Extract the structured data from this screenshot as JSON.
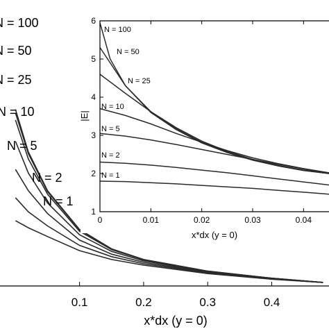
{
  "chart_data": [
    {
      "type": "line",
      "title": "",
      "xlabel": "x*dx (y = 0)",
      "ylabel": "",
      "xlim": [
        -0.035,
        0.485
      ],
      "ylim": [
        0.9,
        9.0
      ],
      "xticks": [
        0.1,
        0.2,
        0.3,
        0.4
      ],
      "x_tick_labels": [
        "0.1",
        "0.2",
        "0.3",
        "0.4"
      ],
      "grid": false,
      "legend": "none",
      "series": [
        {
          "name": "N = 100",
          "label": "N = 100",
          "x": [
            0,
            0.02,
            0.05,
            0.1,
            0.15,
            0.2,
            0.3,
            0.4,
            0.48
          ],
          "y": [
            5.9,
            4.7,
            3.6,
            2.5,
            1.95,
            1.65,
            1.32,
            1.12,
            1.0
          ]
        },
        {
          "name": "N = 50",
          "label": "N = 50",
          "x": [
            0,
            0.02,
            0.05,
            0.1,
            0.15,
            0.2,
            0.3,
            0.4,
            0.48
          ],
          "y": [
            5.8,
            4.65,
            3.57,
            2.49,
            1.95,
            1.65,
            1.32,
            1.12,
            1.0
          ]
        },
        {
          "name": "N = 25",
          "label": "N = 25",
          "x": [
            0,
            0.02,
            0.05,
            0.1,
            0.15,
            0.2,
            0.3,
            0.4,
            0.48
          ],
          "y": [
            5.6,
            4.5,
            3.5,
            2.45,
            1.93,
            1.64,
            1.31,
            1.12,
            1.0
          ]
        },
        {
          "name": "N = 10",
          "label": "N = 10",
          "x": [
            0,
            0.02,
            0.05,
            0.1,
            0.15,
            0.2,
            0.3,
            0.4,
            0.48
          ],
          "y": [
            5.0,
            4.1,
            3.25,
            2.35,
            1.88,
            1.61,
            1.3,
            1.11,
            1.0
          ]
        },
        {
          "name": "N = 5",
          "label": "N = 5",
          "x": [
            0,
            0.02,
            0.05,
            0.1,
            0.15,
            0.2,
            0.3,
            0.4,
            0.48
          ],
          "y": [
            4.2,
            3.6,
            2.95,
            2.2,
            1.8,
            1.57,
            1.28,
            1.1,
            1.0
          ]
        },
        {
          "name": "N = 2",
          "label": "N = 2",
          "x": [
            0,
            0.02,
            0.05,
            0.1,
            0.15,
            0.2,
            0.3,
            0.4,
            0.48
          ],
          "y": [
            3.4,
            3.0,
            2.6,
            2.05,
            1.73,
            1.53,
            1.27,
            1.1,
            1.0
          ]
        },
        {
          "name": "N = 1",
          "label": "N = 1",
          "x": [
            0,
            0.02,
            0.05,
            0.1,
            0.15,
            0.2,
            0.3,
            0.4,
            0.48
          ],
          "y": [
            2.75,
            2.55,
            2.3,
            1.9,
            1.65,
            1.49,
            1.25,
            1.09,
            1.0
          ]
        }
      ]
    },
    {
      "type": "line",
      "title": "",
      "xlabel": "x*dx (y = 0)",
      "ylabel": "|E|",
      "xlim": [
        0,
        0.045
      ],
      "ylim": [
        1,
        6
      ],
      "xticks": [
        0,
        0.01,
        0.02,
        0.03,
        0.04
      ],
      "x_tick_labels": [
        "0",
        "0.01",
        "0.02",
        "0.03",
        "0.04"
      ],
      "yticks": [
        1,
        2,
        3,
        4,
        5,
        6
      ],
      "y_tick_labels": [
        "1",
        "2",
        "3",
        "4",
        "5",
        "6"
      ],
      "grid": false,
      "legend": "none",
      "series": [
        {
          "name": "N = 100",
          "label": "N = 100",
          "x": [
            0,
            0.002,
            0.005,
            0.01,
            0.015,
            0.02,
            0.025,
            0.03,
            0.035,
            0.04,
            0.045
          ],
          "y": [
            5.95,
            5.0,
            4.3,
            3.6,
            3.15,
            2.8,
            2.55,
            2.35,
            2.2,
            2.08,
            2.0
          ]
        },
        {
          "name": "N = 50",
          "label": "N = 50",
          "x": [
            0,
            0.002,
            0.005,
            0.01,
            0.015,
            0.02,
            0.025,
            0.03,
            0.035,
            0.04,
            0.045
          ],
          "y": [
            5.3,
            4.9,
            4.3,
            3.62,
            3.17,
            2.82,
            2.56,
            2.36,
            2.2,
            2.08,
            2.0
          ]
        },
        {
          "name": "N = 25",
          "label": "N = 25",
          "x": [
            0,
            0.002,
            0.005,
            0.01,
            0.015,
            0.02,
            0.025,
            0.03,
            0.035,
            0.04,
            0.045
          ],
          "y": [
            4.6,
            4.4,
            4.1,
            3.62,
            3.2,
            2.85,
            2.58,
            2.37,
            2.21,
            2.09,
            2.0
          ]
        },
        {
          "name": "N = 10",
          "label": "N = 10",
          "x": [
            0,
            0.005,
            0.01,
            0.015,
            0.02,
            0.025,
            0.03,
            0.035,
            0.04,
            0.045
          ],
          "y": [
            3.7,
            3.52,
            3.3,
            3.05,
            2.82,
            2.6,
            2.41,
            2.26,
            2.13,
            2.02
          ]
        },
        {
          "name": "N = 5",
          "label": "N = 5",
          "x": [
            0,
            0.005,
            0.01,
            0.015,
            0.02,
            0.025,
            0.03,
            0.035,
            0.04,
            0.045
          ],
          "y": [
            3.05,
            2.98,
            2.88,
            2.76,
            2.63,
            2.5,
            2.37,
            2.24,
            2.12,
            2.0
          ]
        },
        {
          "name": "N = 2",
          "label": "N = 2",
          "x": [
            0,
            0.005,
            0.01,
            0.015,
            0.02,
            0.025,
            0.03,
            0.035,
            0.04,
            0.045
          ],
          "y": [
            2.3,
            2.27,
            2.22,
            2.16,
            2.09,
            2.02,
            1.94,
            1.86,
            1.78,
            1.7
          ]
        },
        {
          "name": "N = 1",
          "label": "N = 1",
          "x": [
            0,
            0.005,
            0.01,
            0.015,
            0.02,
            0.025,
            0.03,
            0.035,
            0.04,
            0.045
          ],
          "y": [
            1.8,
            1.79,
            1.76,
            1.73,
            1.69,
            1.65,
            1.61,
            1.56,
            1.51,
            1.46
          ]
        }
      ]
    }
  ]
}
